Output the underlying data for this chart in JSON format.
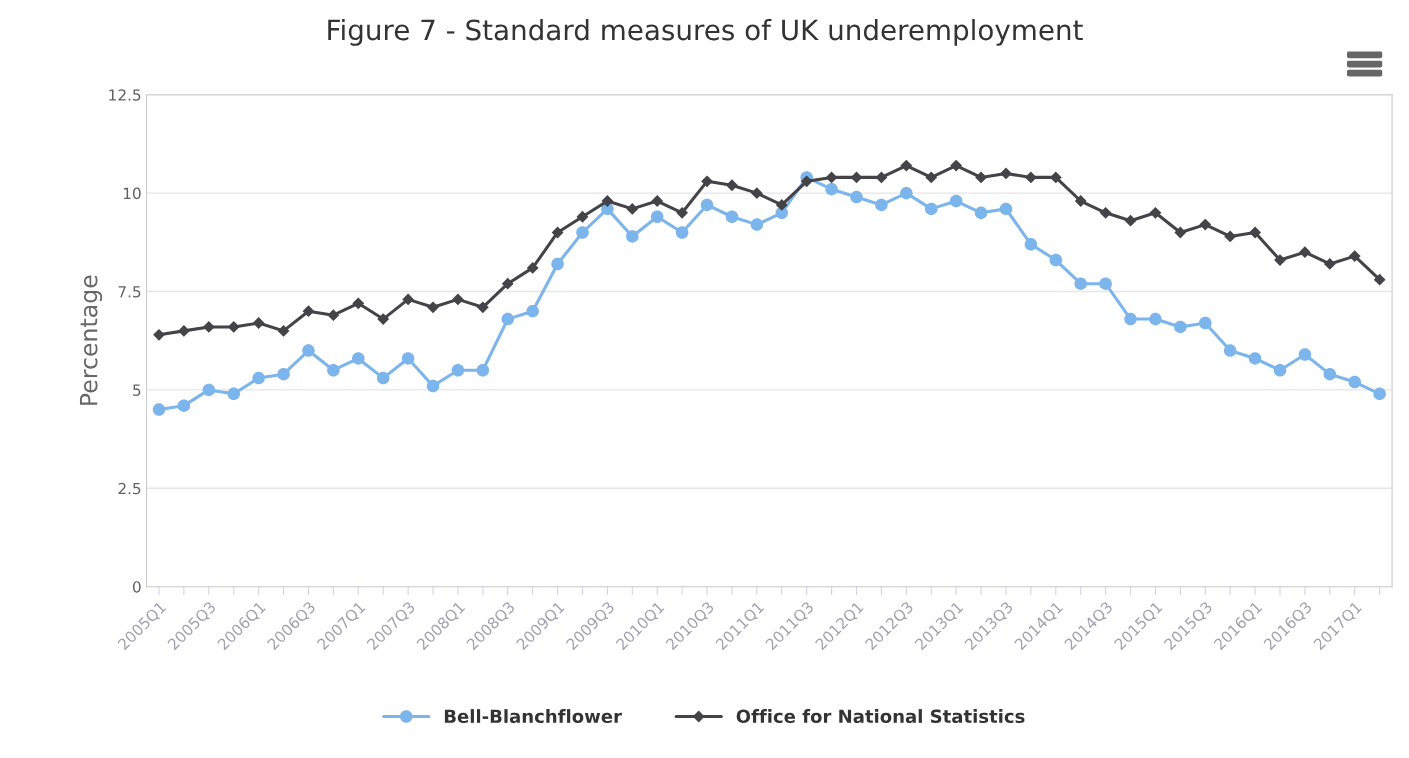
{
  "chart_data": {
    "type": "line",
    "title": "Figure 7 - Standard measures of UK underemployment",
    "ylabel": "Percentage",
    "categories": [
      "2005Q1",
      null,
      "2005Q3",
      null,
      "2006Q1",
      null,
      "2006Q3",
      null,
      "2007Q1",
      null,
      "2007Q3",
      null,
      "2008Q1",
      null,
      "2008Q3",
      null,
      "2009Q1",
      null,
      "2009Q3",
      null,
      "2010Q1",
      null,
      "2010Q3",
      null,
      "2011Q1",
      null,
      "2011Q3",
      null,
      "2012Q1",
      null,
      "2012Q3",
      null,
      "2013Q1",
      null,
      "2013Q3",
      null,
      "2014Q1",
      null,
      "2014Q3",
      null,
      "2015Q1",
      null,
      "2015Q3",
      null,
      "2016Q1",
      null,
      "2016Q3",
      null,
      "2017Q1",
      null
    ],
    "series": [
      {
        "name": "Bell-Blanchflower",
        "color": "#7cb5ec",
        "marker": "circle",
        "values": [
          4.5,
          4.6,
          5.0,
          4.9,
          5.3,
          5.4,
          6.0,
          5.5,
          5.8,
          5.3,
          5.8,
          5.1,
          5.5,
          5.5,
          6.8,
          7.0,
          8.2,
          9.0,
          9.6,
          8.9,
          9.4,
          9.0,
          9.7,
          9.4,
          9.2,
          9.5,
          10.4,
          10.1,
          9.9,
          9.7,
          10.0,
          9.6,
          9.8,
          9.5,
          9.6,
          8.7,
          8.3,
          7.7,
          7.7,
          6.8,
          6.8,
          6.6,
          6.7,
          6.0,
          5.8,
          5.5,
          5.9,
          5.4,
          5.2,
          4.9
        ]
      },
      {
        "name": "Office for National Statistics",
        "color": "#434348",
        "marker": "diamond",
        "values": [
          6.4,
          6.5,
          6.6,
          6.6,
          6.7,
          6.5,
          7.0,
          6.9,
          7.2,
          6.8,
          7.3,
          7.1,
          7.3,
          7.1,
          7.7,
          8.1,
          9.0,
          9.4,
          9.8,
          9.6,
          9.8,
          9.5,
          10.3,
          10.2,
          10.0,
          9.7,
          10.3,
          10.4,
          10.4,
          10.4,
          10.7,
          10.4,
          10.7,
          10.4,
          10.5,
          10.4,
          10.4,
          9.8,
          9.5,
          9.3,
          9.5,
          9.0,
          9.2,
          8.9,
          9.0,
          8.3,
          8.5,
          8.2,
          8.4,
          7.8
        ]
      }
    ],
    "ylim": [
      0,
      12.5
    ],
    "yticks": [
      0,
      2.5,
      5,
      7.5,
      10,
      12.5
    ],
    "grid": "y",
    "legend": "bottom",
    "line_style": "solid"
  }
}
